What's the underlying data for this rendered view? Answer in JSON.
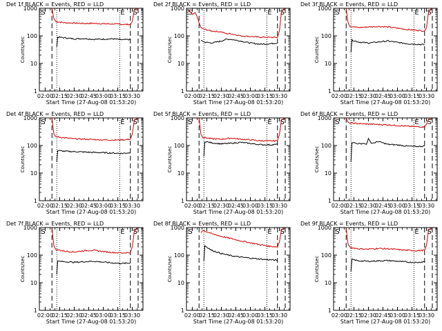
{
  "colors": {
    "events": "#000000",
    "lld": "#d40000",
    "axis": "#000000"
  },
  "panel_template": {
    "title_suffix": " BLACK = Events, RED = LLD",
    "ylabel": "Counts/sec",
    "xlabel": "Start Time (27-Aug-08 01:53:20)",
    "x_ticks": [
      "02:00",
      "02:15",
      "02:30",
      "02:45",
      "03:00",
      "03:15",
      "03:30"
    ],
    "y_ticks": [
      "1",
      "10",
      "100",
      "1000"
    ],
    "marker_s": "S",
    "marker_e": "E"
  },
  "chart_data": [
    {
      "type": "line",
      "title": "Det 1f BLACK = Events, RED = LLD",
      "det": "Det 1f",
      "xlim_min": [
        -6,
        101
      ],
      "ylim": [
        1,
        1000
      ],
      "yscale": "log",
      "dashed_lines_min": [
        7,
        88,
        96
      ],
      "dotted_lines_min": [
        12,
        77
      ],
      "markers": [
        {
          "label": "S",
          "x_min": -2
        },
        {
          "label": "E",
          "x_min": 80
        },
        {
          "label": "S",
          "x_min": 93
        }
      ],
      "series": [
        {
          "name": "LLD",
          "color": "red",
          "x": [
            7,
            9,
            11,
            20,
            30,
            40,
            50,
            60,
            70,
            80,
            88,
            90,
            92,
            95
          ],
          "y": [
            1000,
            420,
            330,
            300,
            290,
            280,
            285,
            275,
            270,
            262,
            258,
            330,
            900,
            1000
          ]
        },
        {
          "name": "Events",
          "color": "black",
          "x": [
            12,
            13,
            20,
            30,
            40,
            50,
            60,
            70,
            80,
            88
          ],
          "y": [
            40,
            90,
            85,
            78,
            80,
            75,
            76,
            78,
            72,
            74
          ]
        }
      ]
    },
    {
      "type": "line",
      "title": "Det 2f BLACK = Events, RED = LLD",
      "det": "Det 2f",
      "xlim_min": [
        -6,
        101
      ],
      "ylim": [
        1,
        1000
      ],
      "yscale": "log",
      "dashed_lines_min": [
        7,
        88,
        96
      ],
      "dotted_lines_min": [
        12,
        77
      ],
      "markers": [
        {
          "label": "S",
          "x_min": -2
        },
        {
          "label": "E",
          "x_min": 80
        },
        {
          "label": "S",
          "x_min": 93
        }
      ],
      "series": [
        {
          "name": "LLD",
          "color": "red",
          "x": [
            -4,
            0,
            3,
            5,
            7,
            9,
            12,
            20,
            30,
            35,
            40,
            50,
            60,
            70,
            80,
            88,
            90,
            92,
            95
          ],
          "y": [
            900,
            600,
            700,
            500,
            300,
            200,
            175,
            150,
            140,
            120,
            120,
            100,
            95,
            90,
            88,
            88,
            150,
            700,
            1000
          ]
        },
        {
          "name": "Events",
          "color": "black",
          "x": [
            9,
            12,
            20,
            30,
            35,
            40,
            50,
            60,
            70,
            80,
            88
          ],
          "y": [
            70,
            60,
            55,
            65,
            75,
            75,
            65,
            55,
            50,
            52,
            55
          ]
        }
      ]
    },
    {
      "type": "line",
      "title": "Det 3f BLACK = Events, RED = LLD",
      "det": "Det 3f",
      "xlim_min": [
        -6,
        101
      ],
      "ylim": [
        1,
        1000
      ],
      "yscale": "log",
      "dashed_lines_min": [
        7,
        88,
        96
      ],
      "dotted_lines_min": [
        12,
        77
      ],
      "markers": [
        {
          "label": "S",
          "x_min": -2
        },
        {
          "label": "E",
          "x_min": 80
        },
        {
          "label": "S",
          "x_min": 93
        }
      ],
      "series": [
        {
          "name": "LLD",
          "color": "red",
          "x": [
            7,
            9,
            11,
            20,
            30,
            40,
            50,
            60,
            70,
            80,
            88,
            90,
            92,
            95
          ],
          "y": [
            1000,
            300,
            220,
            200,
            210,
            220,
            210,
            190,
            170,
            160,
            150,
            200,
            700,
            1000
          ]
        },
        {
          "name": "Events",
          "color": "black",
          "x": [
            12,
            13,
            20,
            30,
            40,
            50,
            60,
            70,
            80,
            88
          ],
          "y": [
            25,
            70,
            60,
            55,
            60,
            65,
            58,
            52,
            50,
            48
          ]
        }
      ]
    },
    {
      "type": "line",
      "title": "Det 4f BLACK = Events, RED = LLD",
      "det": "Det 4f",
      "xlim_min": [
        -6,
        101
      ],
      "ylim": [
        1,
        1000
      ],
      "yscale": "log",
      "dashed_lines_min": [
        7,
        88,
        96
      ],
      "dotted_lines_min": [
        12,
        77
      ],
      "markers": [
        {
          "label": "S",
          "x_min": -2
        },
        {
          "label": "E",
          "x_min": 80
        },
        {
          "label": "S",
          "x_min": 93
        }
      ],
      "series": [
        {
          "name": "LLD",
          "color": "red",
          "x": [
            7,
            9,
            11,
            20,
            30,
            40,
            50,
            60,
            70,
            80,
            88,
            90,
            92,
            95
          ],
          "y": [
            1000,
            260,
            210,
            190,
            175,
            170,
            165,
            160,
            158,
            160,
            170,
            260,
            800,
            1000
          ]
        },
        {
          "name": "Events",
          "color": "black",
          "x": [
            12,
            13,
            20,
            30,
            40,
            50,
            60,
            70,
            80,
            88
          ],
          "y": [
            25,
            65,
            62,
            60,
            58,
            56,
            55,
            53,
            52,
            55
          ]
        }
      ]
    },
    {
      "type": "line",
      "title": "Det 5f BLACK = Events, RED = LLD",
      "det": "Det 5f",
      "xlim_min": [
        -6,
        101
      ],
      "ylim": [
        1,
        1000
      ],
      "yscale": "log",
      "dashed_lines_min": [
        7,
        88,
        96
      ],
      "dotted_lines_min": [
        12,
        77
      ],
      "markers": [
        {
          "label": "S",
          "x_min": -2
        },
        {
          "label": "E",
          "x_min": 80
        },
        {
          "label": "S",
          "x_min": 93
        }
      ],
      "series": [
        {
          "name": "LLD",
          "color": "red",
          "x": [
            7,
            9,
            11,
            20,
            30,
            40,
            50,
            60,
            70,
            80,
            88,
            90,
            92,
            95
          ],
          "y": [
            1000,
            250,
            200,
            175,
            170,
            185,
            170,
            160,
            150,
            145,
            150,
            250,
            800,
            1000
          ]
        },
        {
          "name": "Events",
          "color": "black",
          "x": [
            12,
            13,
            20,
            30,
            40,
            50,
            60,
            70,
            80,
            88
          ],
          "y": [
            40,
            140,
            125,
            115,
            120,
            130,
            118,
            108,
            105,
            110
          ]
        }
      ]
    },
    {
      "type": "line",
      "title": "Det 6f BLACK = Events, RED = LLD",
      "det": "Det 6f",
      "xlim_min": [
        -6,
        101
      ],
      "ylim": [
        1,
        1000
      ],
      "yscale": "log",
      "dashed_lines_min": [
        7,
        88,
        96
      ],
      "dotted_lines_min": [
        12,
        77
      ],
      "markers": [
        {
          "label": "S",
          "x_min": -2
        },
        {
          "label": "E",
          "x_min": 80
        },
        {
          "label": "S",
          "x_min": 93
        }
      ],
      "series": [
        {
          "name": "LLD",
          "color": "red",
          "x": [
            7,
            9,
            11,
            20,
            30,
            40,
            50,
            60,
            70,
            80,
            88,
            90,
            92,
            95
          ],
          "y": [
            1000,
            700,
            650,
            620,
            600,
            580,
            560,
            530,
            500,
            480,
            470,
            600,
            900,
            1000
          ]
        },
        {
          "name": "Events",
          "color": "black",
          "x": [
            12,
            13,
            20,
            25,
            28,
            30,
            33,
            36,
            40,
            50,
            60,
            70,
            80,
            88
          ],
          "y": [
            25,
            130,
            115,
            120,
            110,
            180,
            120,
            125,
            140,
            110,
            105,
            95,
            92,
            95
          ]
        }
      ]
    },
    {
      "type": "line",
      "title": "Det 7f BLACK = Events, RED = LLD",
      "det": "Det 7f",
      "xlim_min": [
        -6,
        101
      ],
      "ylim": [
        1,
        1000
      ],
      "yscale": "log",
      "dashed_lines_min": [
        7,
        88,
        96
      ],
      "dotted_lines_min": [
        12,
        77
      ],
      "markers": [
        {
          "label": "S",
          "x_min": -2
        },
        {
          "label": "E",
          "x_min": 80
        },
        {
          "label": "S",
          "x_min": 93
        }
      ],
      "series": [
        {
          "name": "LLD",
          "color": "red",
          "x": [
            7,
            9,
            11,
            20,
            30,
            40,
            50,
            60,
            70,
            80,
            88,
            90,
            92,
            95
          ],
          "y": [
            1000,
            220,
            160,
            140,
            130,
            145,
            150,
            135,
            125,
            120,
            125,
            200,
            700,
            1000
          ]
        },
        {
          "name": "Events",
          "color": "black",
          "x": [
            12,
            13,
            20,
            30,
            40,
            50,
            60,
            70,
            80,
            88
          ],
          "y": [
            20,
            60,
            58,
            55,
            58,
            60,
            56,
            52,
            50,
            52
          ]
        }
      ]
    },
    {
      "type": "line",
      "title": "Det 8f BLACK = Events, RED = LLD",
      "det": "Det 8f",
      "xlim_min": [
        -6,
        101
      ],
      "ylim": [
        1,
        1000
      ],
      "yscale": "log",
      "dashed_lines_min": [
        7,
        88,
        96
      ],
      "dotted_lines_min": [
        12,
        77
      ],
      "markers": [
        {
          "label": "S",
          "x_min": -2
        },
        {
          "label": "E",
          "x_min": 80
        },
        {
          "label": "S",
          "x_min": 93
        }
      ],
      "series": [
        {
          "name": "LLD",
          "color": "red",
          "x": [
            9,
            11,
            20,
            30,
            40,
            50,
            60,
            70,
            80,
            88,
            90,
            92,
            95
          ],
          "y": [
            650,
            800,
            600,
            480,
            400,
            330,
            280,
            240,
            210,
            200,
            300,
            800,
            1000
          ]
        },
        {
          "name": "Events",
          "color": "black",
          "x": [
            12,
            13,
            20,
            30,
            40,
            50,
            60,
            70,
            80,
            88
          ],
          "y": [
            60,
            220,
            150,
            115,
            95,
            85,
            78,
            72,
            68,
            65
          ]
        }
      ]
    },
    {
      "type": "line",
      "title": "Det 9f BLACK = Events, RED = LLD",
      "det": "Det 9f",
      "xlim_min": [
        -6,
        101
      ],
      "ylim": [
        1,
        1000
      ],
      "yscale": "log",
      "dashed_lines_min": [
        7,
        88,
        96
      ],
      "dotted_lines_min": [
        12,
        77
      ],
      "markers": [
        {
          "label": "S",
          "x_min": -2
        },
        {
          "label": "E",
          "x_min": 80
        },
        {
          "label": "S",
          "x_min": 93
        }
      ],
      "series": [
        {
          "name": "LLD",
          "color": "red",
          "x": [
            7,
            9,
            11,
            20,
            30,
            40,
            50,
            60,
            70,
            80,
            88,
            90,
            92,
            95
          ],
          "y": [
            1000,
            250,
            190,
            170,
            165,
            175,
            170,
            160,
            150,
            145,
            150,
            230,
            800,
            1000
          ]
        },
        {
          "name": "Events",
          "color": "black",
          "x": [
            12,
            13,
            20,
            30,
            40,
            50,
            60,
            70,
            80,
            88
          ],
          "y": [
            25,
            70,
            62,
            60,
            62,
            64,
            60,
            56,
            54,
            58
          ]
        }
      ]
    }
  ]
}
